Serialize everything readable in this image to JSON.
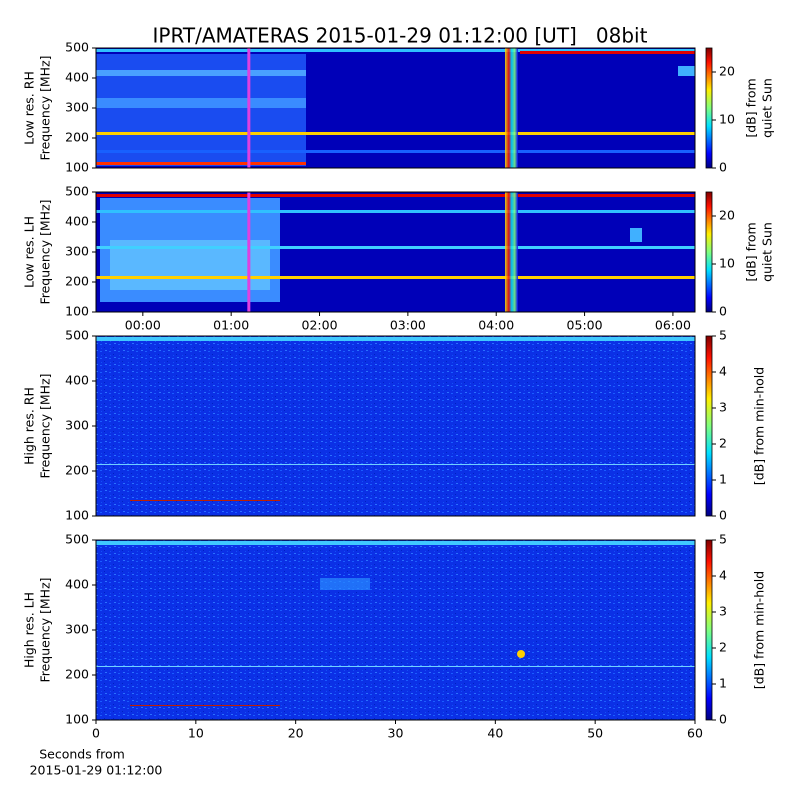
{
  "title": "IPRT/AMATERAS 2015-01-29 01:12:00 [UT]   08bit",
  "chart_data": [
    {
      "type": "heatmap",
      "ylabel": [
        "Low res. RH",
        "Frequency [MHz]"
      ],
      "xlim": [
        -0.53,
        6.25
      ],
      "ylim": [
        100,
        500
      ],
      "yticks": [
        100,
        200,
        300,
        400,
        500
      ],
      "marker": 1.2,
      "marker_color": "#e040e0",
      "colorbar_label": [
        "[dB] from",
        "quiet Sun"
      ],
      "clim": [
        0,
        25
      ],
      "cticks": [
        0,
        10,
        20
      ],
      "colormap": "jet"
    },
    {
      "type": "heatmap",
      "ylabel": [
        "Low res. LH",
        "Frequency [MHz]"
      ],
      "xlim": [
        -0.53,
        6.25
      ],
      "xticks": [
        {
          "value": 0,
          "label": "00:00"
        },
        {
          "value": 1,
          "label": "01:00"
        },
        {
          "value": 2,
          "label": "02:00"
        },
        {
          "value": 3,
          "label": "03:00"
        },
        {
          "value": 4,
          "label": "04:00"
        },
        {
          "value": 5,
          "label": "05:00"
        },
        {
          "value": 6,
          "label": "06:00"
        }
      ],
      "ylim": [
        100,
        500
      ],
      "yticks": [
        100,
        200,
        300,
        400,
        500
      ],
      "marker": 1.2,
      "marker_color": "#e040e0",
      "colorbar_label": [
        "[dB] from",
        "quiet Sun"
      ],
      "clim": [
        0,
        25
      ],
      "cticks": [
        0,
        10,
        20
      ],
      "colormap": "jet"
    },
    {
      "type": "heatmap",
      "ylabel": [
        "High res. RH",
        "Frequency [MHz]"
      ],
      "xlim": [
        0,
        60
      ],
      "ylim": [
        100,
        500
      ],
      "yticks": [
        100,
        200,
        300,
        400,
        500
      ],
      "colorbar_label": [
        "[dB] from min-hold"
      ],
      "clim": [
        0,
        5
      ],
      "cticks": [
        0,
        1,
        2,
        3,
        4,
        5
      ],
      "colormap": "jet"
    },
    {
      "type": "heatmap",
      "ylabel": [
        "High res. LH",
        "Frequency [MHz]"
      ],
      "xlim": [
        0,
        60
      ],
      "xticks": [
        0,
        10,
        20,
        30,
        40,
        50,
        60
      ],
      "xlabel": [
        "Seconds from",
        "2015-01-29 01:12:00"
      ],
      "ylim": [
        100,
        500
      ],
      "yticks": [
        100,
        200,
        300,
        400,
        500
      ],
      "colorbar_label": [
        "[dB] from min-hold"
      ],
      "clim": [
        0,
        5
      ],
      "cticks": [
        0,
        1,
        2,
        3,
        4,
        5
      ],
      "colormap": "jet"
    }
  ]
}
